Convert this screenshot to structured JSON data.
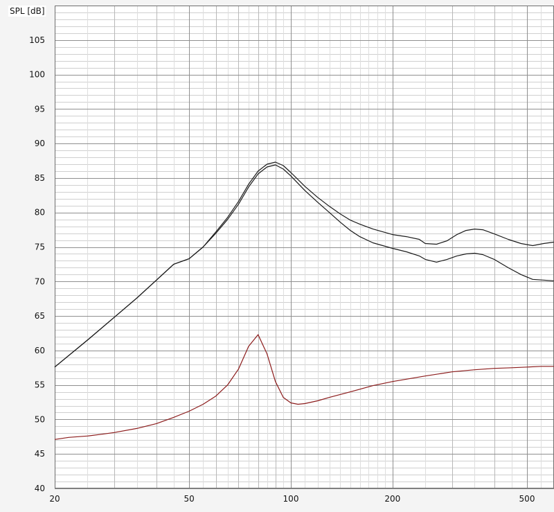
{
  "chart_data": {
    "type": "line",
    "title": "",
    "xlabel": "",
    "ylabel": "SPL [dB]",
    "x_scale": "log",
    "xlim": [
      20,
      600
    ],
    "ylim": [
      40,
      110
    ],
    "x_tick_labels": [
      {
        "value": 20,
        "label": "20"
      },
      {
        "value": 50,
        "label": "50"
      },
      {
        "value": 100,
        "label": "100"
      },
      {
        "value": 200,
        "label": "200"
      },
      {
        "value": 500,
        "label": "500"
      }
    ],
    "y_tick_labels": [
      "40",
      "45",
      "50",
      "55",
      "60",
      "65",
      "70",
      "75",
      "80",
      "85",
      "90",
      "95",
      "100",
      "105"
    ],
    "grid": true,
    "legend": "none",
    "series": [
      {
        "color": "#1a1a1a",
        "points": [
          [
            20,
            57.6
          ],
          [
            25,
            61.5
          ],
          [
            30,
            64.8
          ],
          [
            35,
            67.6
          ],
          [
            40,
            70.2
          ],
          [
            45,
            72.5
          ],
          [
            50,
            73.3
          ],
          [
            55,
            75.0
          ],
          [
            60,
            77.2
          ],
          [
            65,
            79.3
          ],
          [
            70,
            81.6
          ],
          [
            75,
            84.1
          ],
          [
            80,
            86.0
          ],
          [
            85,
            87.0
          ],
          [
            90,
            87.3
          ],
          [
            95,
            86.8
          ],
          [
            100,
            85.8
          ],
          [
            110,
            83.8
          ],
          [
            120,
            82.2
          ],
          [
            130,
            80.9
          ],
          [
            140,
            79.8
          ],
          [
            150,
            78.9
          ],
          [
            160,
            78.3
          ],
          [
            175,
            77.6
          ],
          [
            200,
            76.8
          ],
          [
            220,
            76.5
          ],
          [
            240,
            76.1
          ],
          [
            250,
            75.5
          ],
          [
            270,
            75.4
          ],
          [
            290,
            75.9
          ],
          [
            310,
            76.8
          ],
          [
            330,
            77.4
          ],
          [
            350,
            77.6
          ],
          [
            370,
            77.5
          ],
          [
            400,
            76.9
          ],
          [
            440,
            76.1
          ],
          [
            480,
            75.5
          ],
          [
            520,
            75.2
          ],
          [
            560,
            75.5
          ],
          [
            600,
            75.7
          ]
        ]
      },
      {
        "color": "#1a1a1a",
        "points": [
          [
            20,
            57.6
          ],
          [
            25,
            61.5
          ],
          [
            30,
            64.8
          ],
          [
            35,
            67.6
          ],
          [
            40,
            70.2
          ],
          [
            45,
            72.5
          ],
          [
            50,
            73.3
          ],
          [
            55,
            75.0
          ],
          [
            60,
            77.0
          ],
          [
            65,
            79.0
          ],
          [
            70,
            81.2
          ],
          [
            75,
            83.7
          ],
          [
            80,
            85.6
          ],
          [
            85,
            86.6
          ],
          [
            90,
            86.9
          ],
          [
            95,
            86.3
          ],
          [
            100,
            85.3
          ],
          [
            110,
            83.2
          ],
          [
            120,
            81.5
          ],
          [
            130,
            80.0
          ],
          [
            140,
            78.6
          ],
          [
            150,
            77.4
          ],
          [
            160,
            76.5
          ],
          [
            175,
            75.6
          ],
          [
            200,
            74.8
          ],
          [
            220,
            74.3
          ],
          [
            240,
            73.7
          ],
          [
            250,
            73.2
          ],
          [
            270,
            72.8
          ],
          [
            290,
            73.2
          ],
          [
            310,
            73.7
          ],
          [
            330,
            74.0
          ],
          [
            350,
            74.1
          ],
          [
            370,
            73.9
          ],
          [
            400,
            73.2
          ],
          [
            440,
            72.0
          ],
          [
            480,
            71.0
          ],
          [
            520,
            70.3
          ],
          [
            560,
            70.2
          ],
          [
            600,
            70.1
          ]
        ]
      },
      {
        "color": "#8b1a1a",
        "points": [
          [
            20,
            47.1
          ],
          [
            22,
            47.4
          ],
          [
            25,
            47.6
          ],
          [
            28,
            47.9
          ],
          [
            30,
            48.1
          ],
          [
            35,
            48.7
          ],
          [
            40,
            49.4
          ],
          [
            45,
            50.3
          ],
          [
            50,
            51.2
          ],
          [
            55,
            52.2
          ],
          [
            60,
            53.4
          ],
          [
            65,
            55.0
          ],
          [
            70,
            57.3
          ],
          [
            75,
            60.6
          ],
          [
            80,
            62.3
          ],
          [
            85,
            59.5
          ],
          [
            90,
            55.5
          ],
          [
            95,
            53.2
          ],
          [
            100,
            52.4
          ],
          [
            105,
            52.2
          ],
          [
            110,
            52.3
          ],
          [
            120,
            52.7
          ],
          [
            130,
            53.2
          ],
          [
            150,
            54.0
          ],
          [
            175,
            54.9
          ],
          [
            200,
            55.5
          ],
          [
            250,
            56.3
          ],
          [
            300,
            56.9
          ],
          [
            350,
            57.2
          ],
          [
            400,
            57.4
          ],
          [
            450,
            57.5
          ],
          [
            500,
            57.6
          ],
          [
            550,
            57.7
          ],
          [
            600,
            57.7
          ]
        ]
      }
    ]
  }
}
